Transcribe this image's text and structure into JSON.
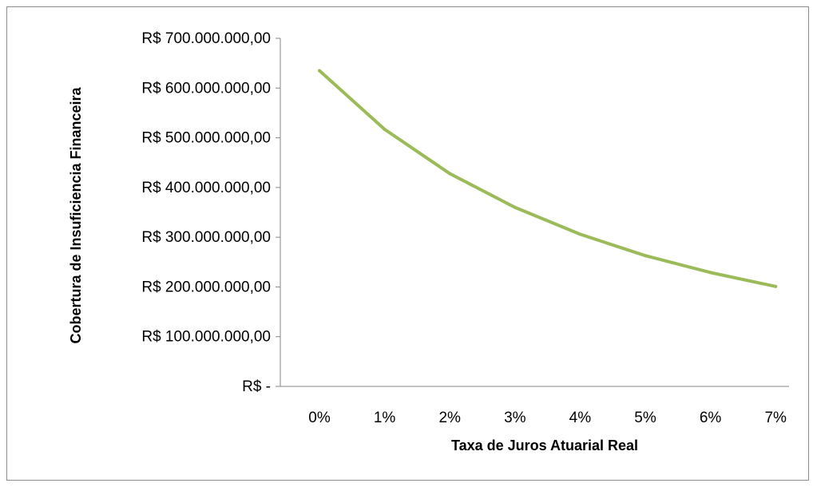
{
  "chart_data": {
    "type": "line",
    "title": "",
    "xlabel": "Taxa de Juros Atuarial Real",
    "ylabel": "Cobertura de Insuficiencia Financeira",
    "categories": [
      "0%",
      "1%",
      "2%",
      "3%",
      "4%",
      "5%",
      "6%",
      "7%"
    ],
    "series": [
      {
        "values": [
          635000000,
          517000000,
          428000000,
          360000000,
          306000000,
          263000000,
          229000000,
          201000000
        ],
        "color": "#9bbb59"
      }
    ],
    "ylim": [
      0,
      700000000
    ],
    "yticks": [
      {
        "value": 0,
        "label": "R$ -"
      },
      {
        "value": 100000000,
        "label": "R$ 100.000.000,00"
      },
      {
        "value": 200000000,
        "label": "R$ 200.000.000,00"
      },
      {
        "value": 300000000,
        "label": "R$ 300.000.000,00"
      },
      {
        "value": 400000000,
        "label": "R$ 400.000.000,00"
      },
      {
        "value": 500000000,
        "label": "R$ 500.000.000,00"
      },
      {
        "value": 600000000,
        "label": "R$ 600.000.000,00"
      },
      {
        "value": 700000000,
        "label": "R$ 700.000.000,00"
      }
    ],
    "grid": false,
    "legend": "none"
  }
}
